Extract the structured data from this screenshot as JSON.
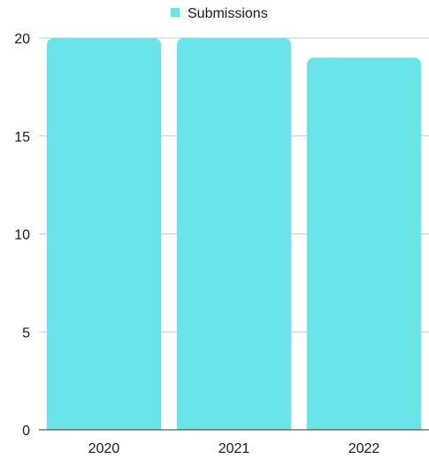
{
  "chart_data": {
    "type": "bar",
    "categories": [
      "2020",
      "2021",
      "2022"
    ],
    "series": [
      {
        "name": "Submissions",
        "values": [
          20,
          20,
          19
        ],
        "color": "#6ae4e8"
      }
    ],
    "ylim": [
      0,
      20
    ],
    "yticks": [
      0,
      5,
      10,
      15,
      20
    ],
    "grid": true,
    "legend_position": "top-center"
  }
}
